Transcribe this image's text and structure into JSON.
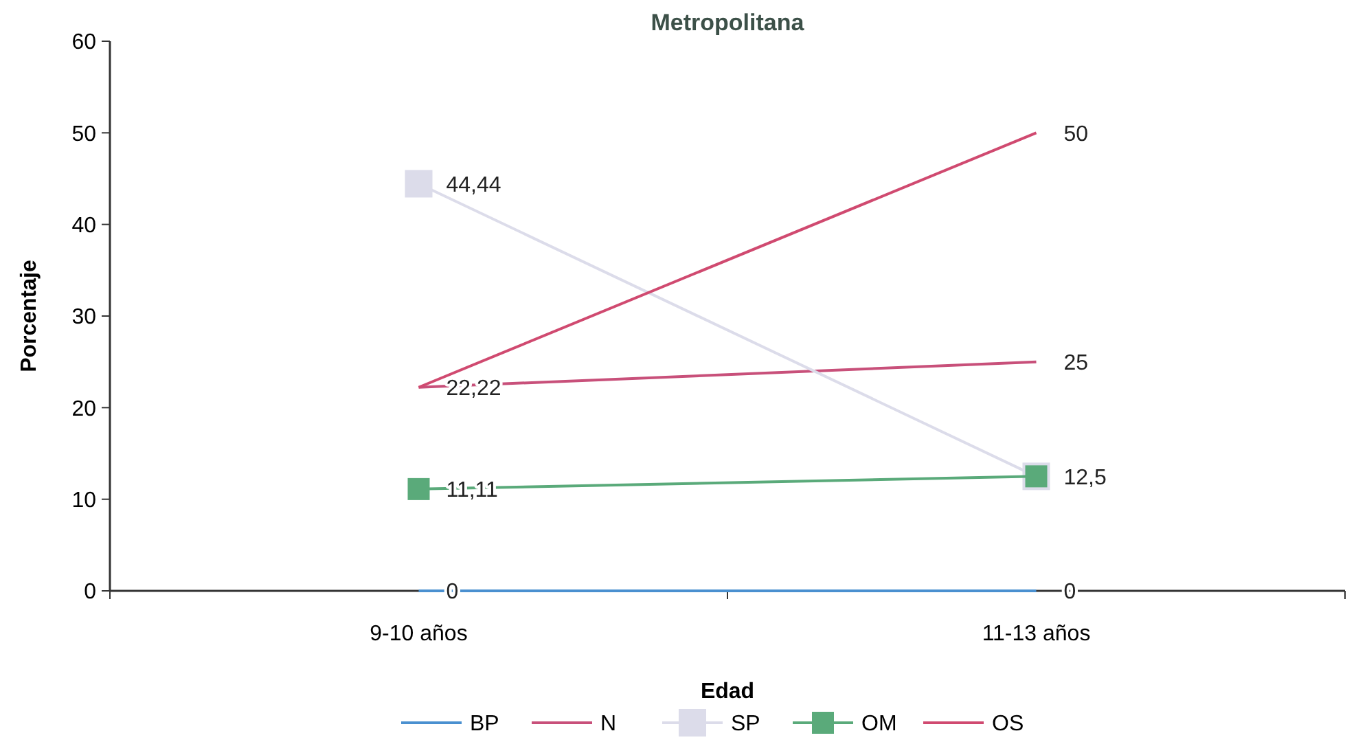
{
  "chart_data": {
    "type": "line",
    "title": "Metropolitana",
    "xlabel": "Edad",
    "ylabel": "Porcentaje",
    "categories": [
      "9-10 años",
      "11-13 años"
    ],
    "ylim": [
      0,
      60
    ],
    "yticks": [
      0,
      10,
      20,
      30,
      40,
      50,
      60
    ],
    "grid": false,
    "legend": "bottom",
    "series": [
      {
        "name": "BP",
        "color": "#4a90d0",
        "values": [
          0,
          0
        ],
        "marker": "none",
        "value_labels": [
          "0",
          "0"
        ]
      },
      {
        "name": "N",
        "color": "#c8507a",
        "values": [
          22.22,
          25
        ],
        "marker": "none",
        "value_labels": [
          "22,22",
          "25"
        ]
      },
      {
        "name": "SP",
        "color": "#dcdcea",
        "values": [
          44.44,
          12.5
        ],
        "marker": "square",
        "value_labels": [
          "44,44",
          null
        ]
      },
      {
        "name": "OM",
        "color": "#5aaa7a",
        "values": [
          11.11,
          12.5
        ],
        "marker": "square",
        "value_labels": [
          "11,11",
          "12,5"
        ]
      },
      {
        "name": "OS",
        "color": "#d04a70",
        "values": [
          22.22,
          50
        ],
        "marker": "none",
        "value_labels": [
          null,
          "50"
        ]
      }
    ]
  }
}
